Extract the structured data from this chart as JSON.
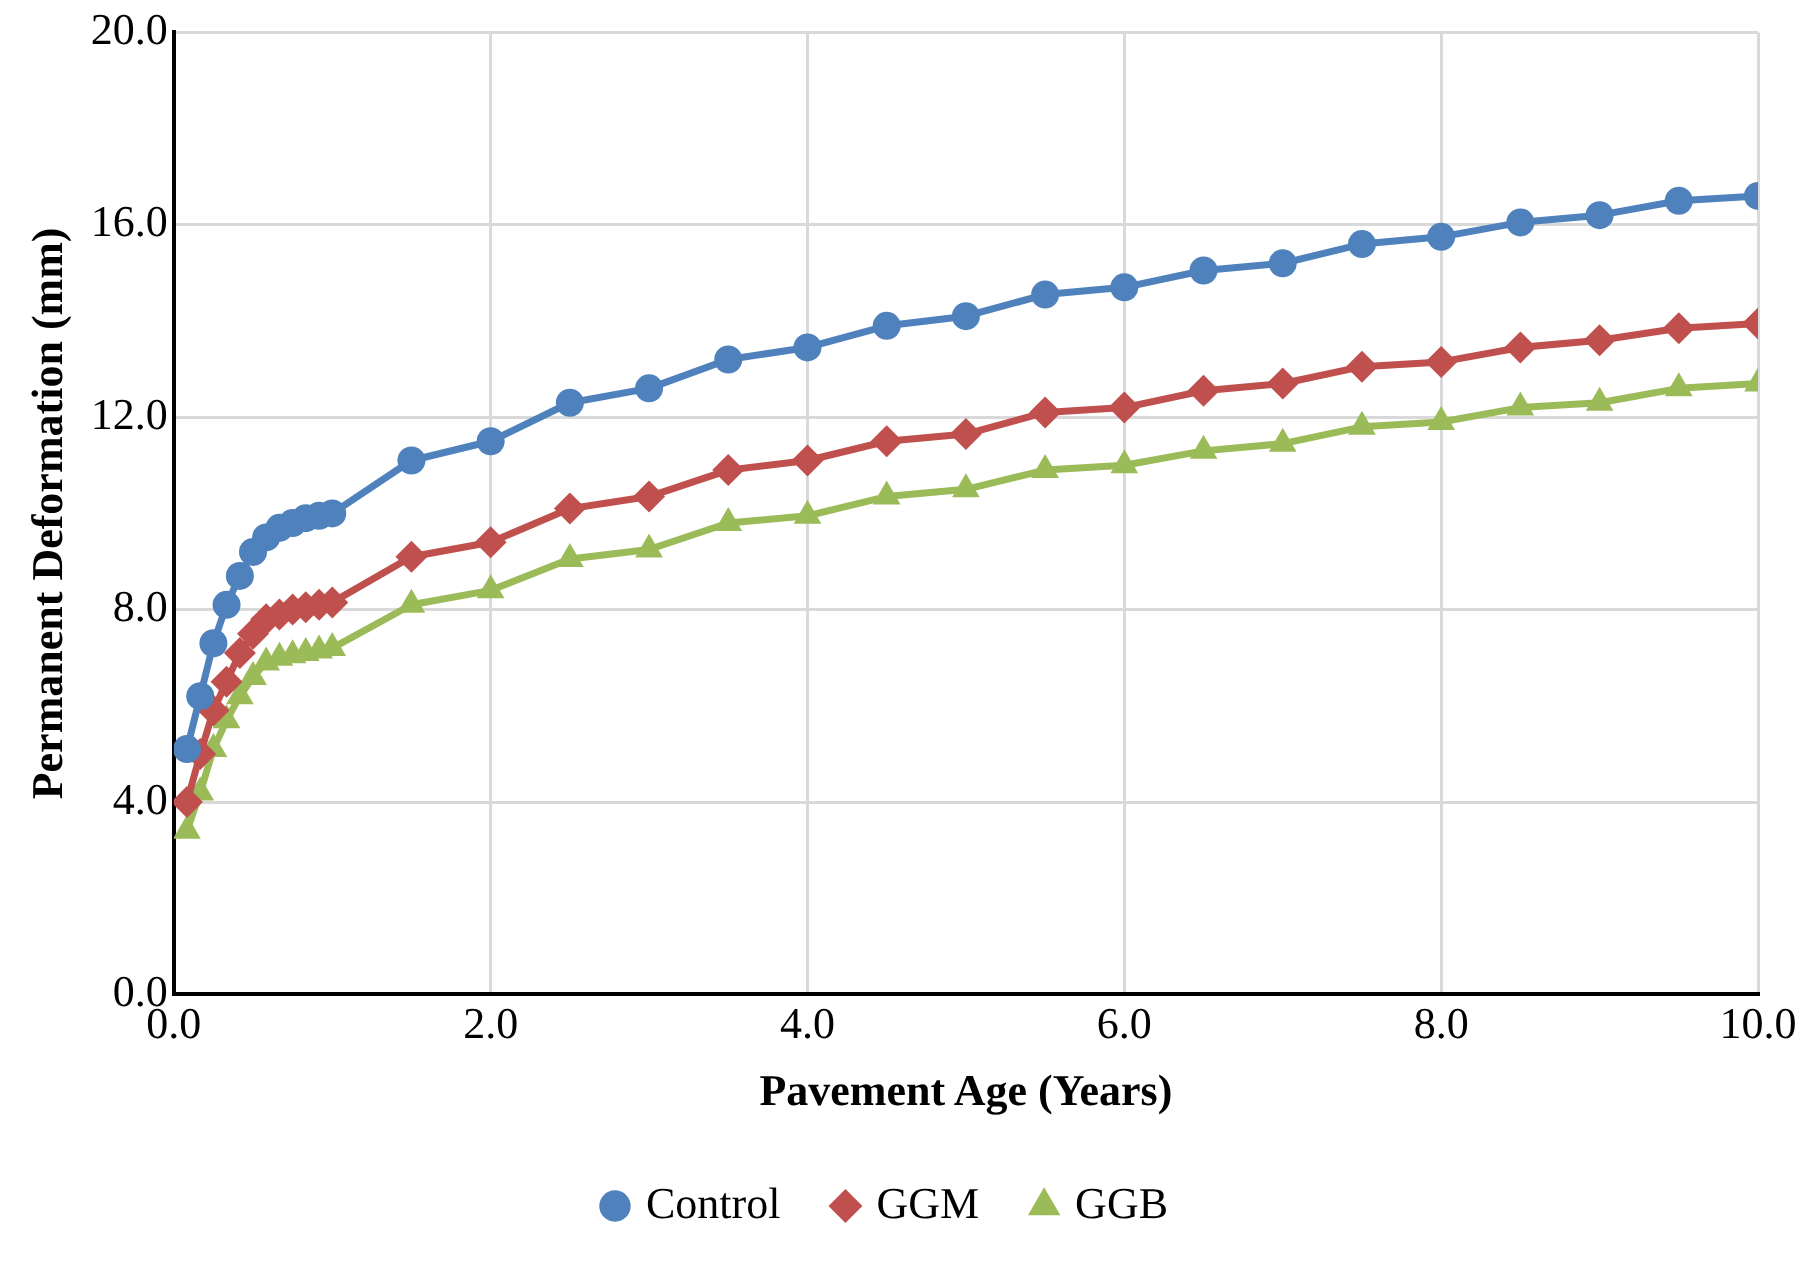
{
  "chart_data": {
    "type": "line",
    "xlabel": "Pavement Age (Years)",
    "ylabel": "Permanent Deformation (mm)",
    "x": [
      0.083,
      0.167,
      0.25,
      0.333,
      0.417,
      0.5,
      0.583,
      0.667,
      0.75,
      0.833,
      0.917,
      1.0,
      1.5,
      2,
      2.5,
      3,
      3.5,
      4,
      4.5,
      5,
      5.5,
      6,
      6.5,
      7,
      7.5,
      8,
      8.5,
      9,
      9.5,
      10
    ],
    "series": [
      {
        "name": "Control",
        "color": "#4f81bd",
        "marker": "circle",
        "values": [
          5.1,
          6.2,
          7.3,
          8.1,
          8.7,
          9.2,
          9.5,
          9.7,
          9.8,
          9.9,
          9.95,
          10.0,
          11.1,
          11.5,
          12.3,
          12.6,
          13.2,
          13.45,
          13.9,
          14.1,
          14.55,
          14.7,
          15.05,
          15.2,
          15.6,
          15.75,
          16.05,
          16.2,
          16.5,
          16.6
        ]
      },
      {
        "name": "GGM",
        "color": "#c0504d",
        "marker": "diamond",
        "values": [
          4.0,
          5.0,
          5.9,
          6.5,
          7.1,
          7.5,
          7.8,
          7.9,
          8.0,
          8.05,
          8.1,
          8.15,
          9.1,
          9.4,
          10.1,
          10.35,
          10.9,
          11.1,
          11.5,
          11.65,
          12.1,
          12.2,
          12.55,
          12.7,
          13.05,
          13.15,
          13.45,
          13.6,
          13.85,
          13.95
        ]
      },
      {
        "name": "GGB",
        "color": "#9bbb59",
        "marker": "triangle",
        "values": [
          3.4,
          4.2,
          5.1,
          5.7,
          6.2,
          6.6,
          6.9,
          7.0,
          7.05,
          7.1,
          7.15,
          7.2,
          8.1,
          8.4,
          9.05,
          9.25,
          9.8,
          9.95,
          10.35,
          10.5,
          10.9,
          11.0,
          11.3,
          11.45,
          11.8,
          11.9,
          12.2,
          12.3,
          12.6,
          12.7
        ]
      }
    ],
    "xlim": [
      0,
      10
    ],
    "xticks": [
      {
        "value": 0,
        "label": "0.0"
      },
      {
        "value": 2,
        "label": "2.0"
      },
      {
        "value": 4,
        "label": "4.0"
      },
      {
        "value": 6,
        "label": "6.0"
      },
      {
        "value": 8,
        "label": "8.0"
      },
      {
        "value": 10,
        "label": "10.0"
      }
    ],
    "ylim": [
      0,
      20
    ],
    "yticks": [
      {
        "value": 0,
        "label": "0.0"
      },
      {
        "value": 4,
        "label": "4.0"
      },
      {
        "value": 8,
        "label": "8.0"
      },
      {
        "value": 12,
        "label": "12.0"
      },
      {
        "value": 16,
        "label": "16.0"
      },
      {
        "value": 20,
        "label": "20.0"
      }
    ],
    "grid": true,
    "legend": "bottom",
    "line_style": "solid"
  }
}
